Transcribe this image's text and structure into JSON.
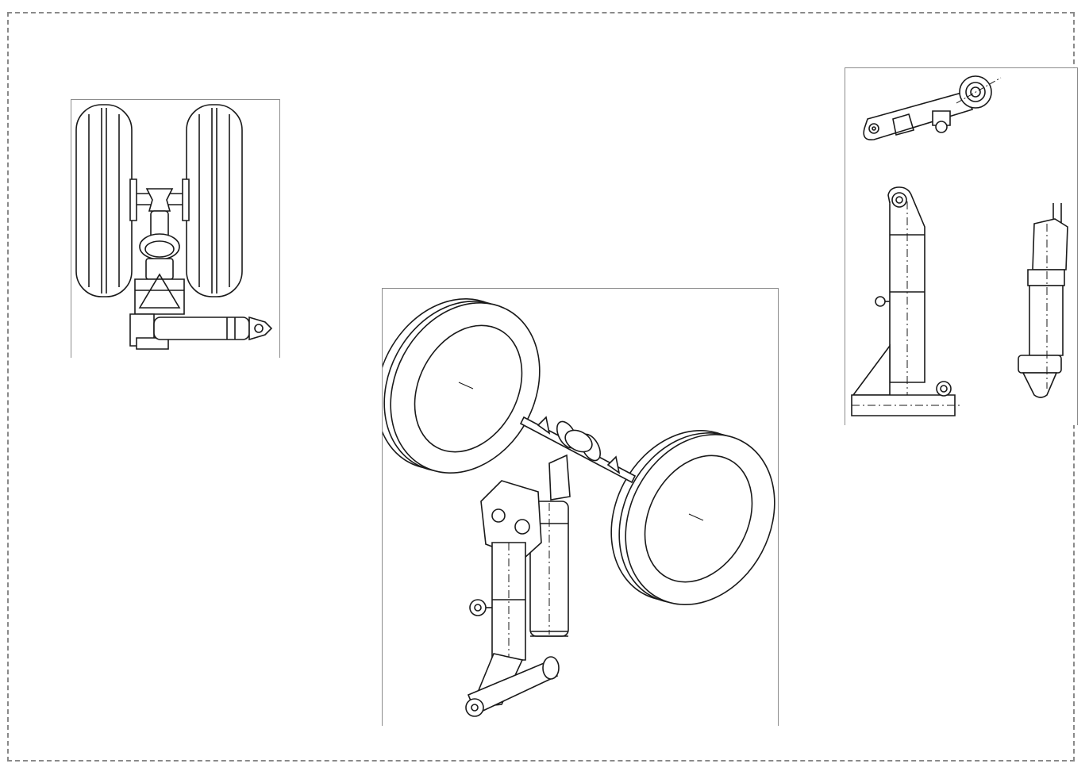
{
  "drawing": {
    "views": [
      {
        "id": "front",
        "label": ""
      },
      {
        "id": "isometric",
        "label": ""
      },
      {
        "id": "parts",
        "label": ""
      }
    ],
    "colors": {
      "stroke": "#1a1a1a",
      "frame": "#8c8c8c",
      "border": "#8a8a8a",
      "paper": "#ffffff"
    }
  }
}
